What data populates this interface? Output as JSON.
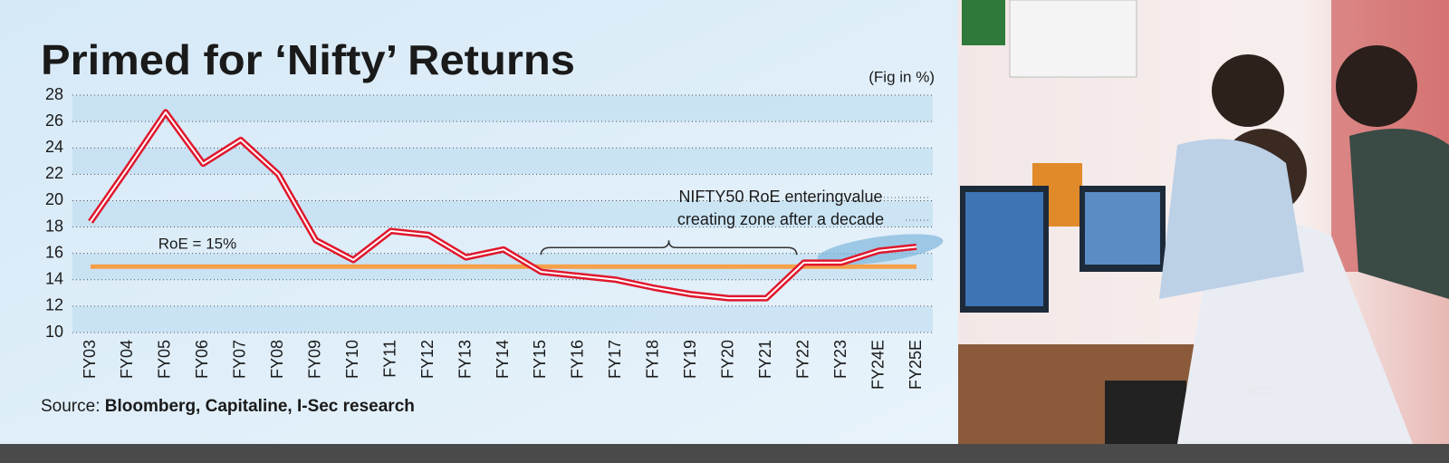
{
  "chart_data": {
    "type": "line",
    "title": "Primed for ‘Nifty’ Returns",
    "unit_note": "(Fig in %)",
    "source_prefix": "Source:",
    "source": "Bloomberg, Capitaline, I-Sec research",
    "categories": [
      "FY03",
      "FY04",
      "FY05",
      "FY06",
      "FY07",
      "FY08",
      "FY09",
      "FY10",
      "FY11",
      "FY12",
      "FY13",
      "FY14",
      "FY15",
      "FY16",
      "FY17",
      "FY18",
      "FY19",
      "FY20",
      "FY21",
      "FY22",
      "FY23",
      "FY24E",
      "FY25E"
    ],
    "series": [
      {
        "name": "NIFTY50 RoE",
        "color": "#e0182d",
        "values": [
          18.4,
          22.5,
          26.7,
          22.8,
          24.6,
          22.0,
          17.0,
          15.5,
          17.7,
          17.4,
          15.7,
          16.3,
          14.6,
          14.3,
          14.0,
          13.4,
          12.9,
          12.6,
          12.6,
          15.3,
          15.3,
          16.2,
          16.5
        ]
      }
    ],
    "reference_line": {
      "value": 15,
      "label": "RoE = 15%",
      "color": "#f5a04a"
    },
    "annotation": [
      "NIFTY50 RoE enteringvalue",
      "creating zone after a decade"
    ],
    "ylim": [
      10,
      28
    ],
    "yticks": [
      10,
      12,
      14,
      16,
      18,
      20,
      22,
      24,
      26,
      28
    ],
    "grid": true,
    "photo_watermark": "BCCL"
  }
}
